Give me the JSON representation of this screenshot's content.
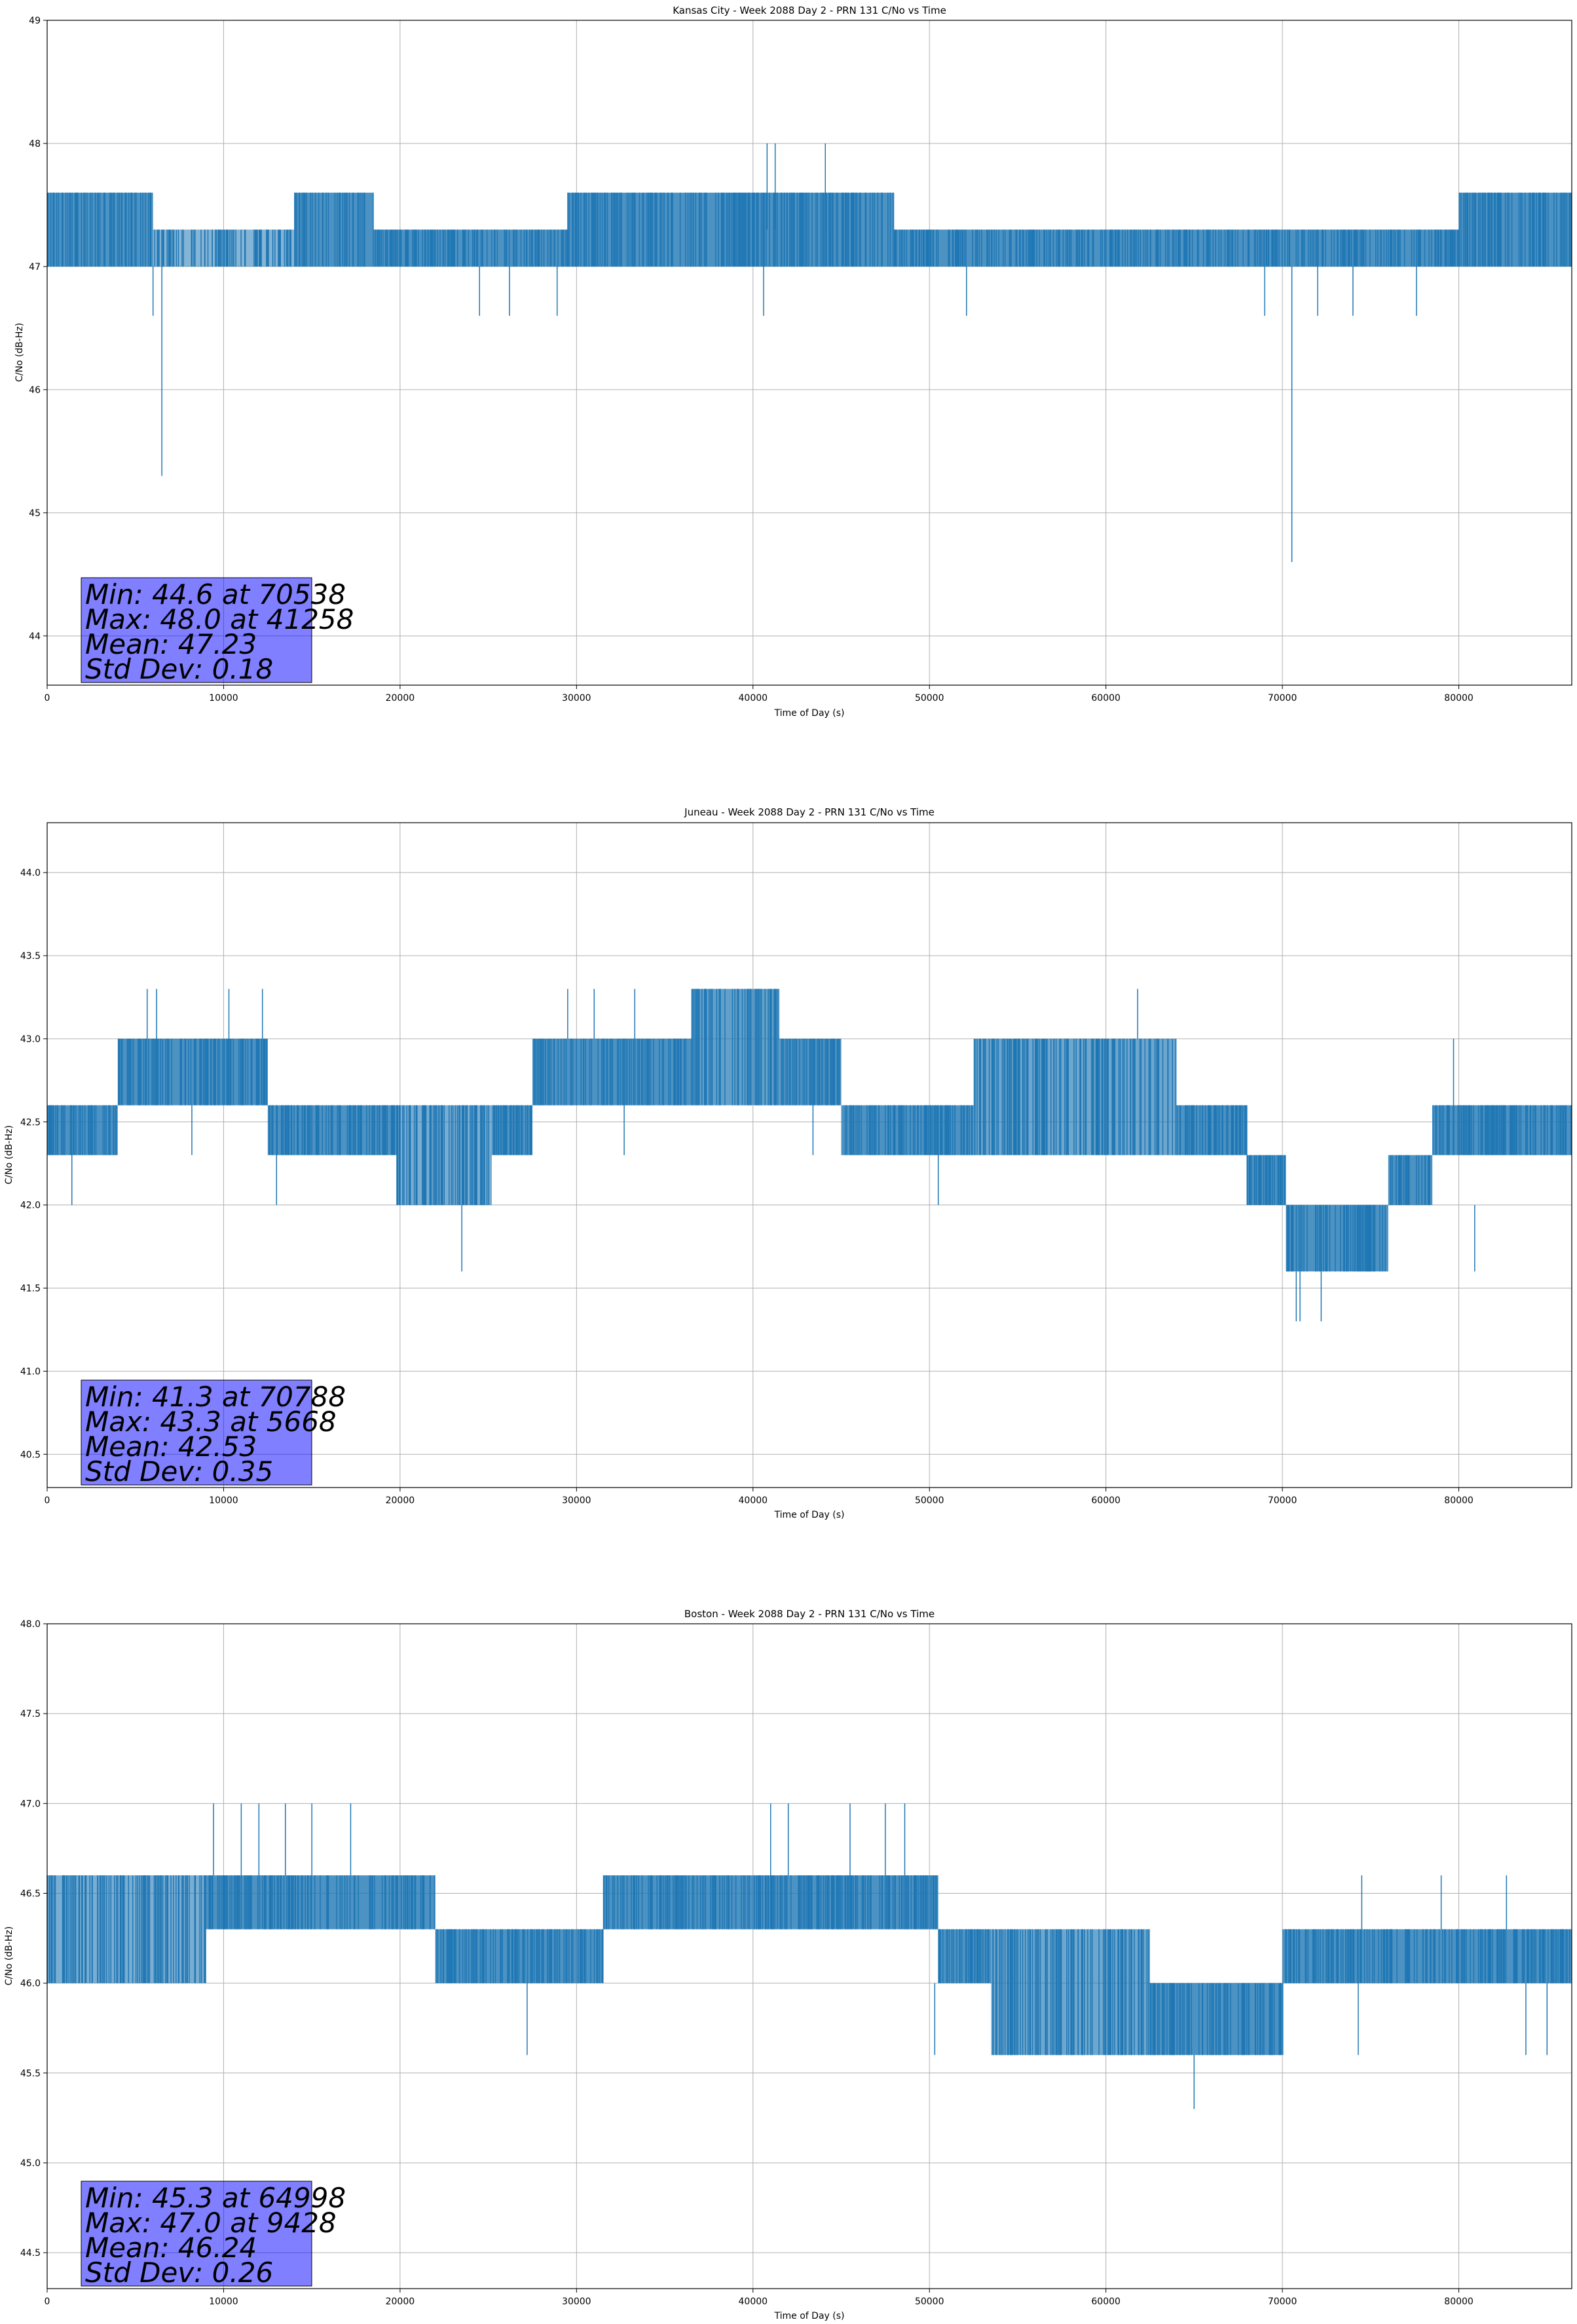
{
  "chart_data": [
    {
      "type": "line",
      "title": "Kansas City - Week 2088 Day 2 - PRN 131 C/No vs Time",
      "xlabel": "Time of Day (s)",
      "ylabel": "C/No (dB-Hz)",
      "xlim": [
        0,
        86400
      ],
      "ylim": [
        43.6,
        49.0
      ],
      "xticks": [
        0,
        10000,
        20000,
        30000,
        40000,
        50000,
        60000,
        70000,
        80000
      ],
      "yticks": [
        44,
        45,
        46,
        47,
        48,
        49
      ],
      "grid": true,
      "color": "#1f77b4",
      "band_step": 500,
      "bands": [
        {
          "x0": 0,
          "x1": 6000,
          "lo": 47.0,
          "hi": 47.6
        },
        {
          "x0": 6000,
          "x1": 14000,
          "lo": 47.0,
          "hi": 47.3,
          "dense": 0.55
        },
        {
          "x0": 14000,
          "x1": 18500,
          "lo": 47.0,
          "hi": 47.6
        },
        {
          "x0": 18500,
          "x1": 29500,
          "lo": 47.0,
          "hi": 47.3
        },
        {
          "x0": 29500,
          "x1": 48000,
          "lo": 47.0,
          "hi": 47.6
        },
        {
          "x0": 48000,
          "x1": 80000,
          "lo": 47.0,
          "hi": 47.3
        },
        {
          "x0": 80000,
          "x1": 86400,
          "lo": 47.0,
          "hi": 47.6
        }
      ],
      "spikes": [
        {
          "x": 6500,
          "lo": 45.3,
          "hi": 47.0
        },
        {
          "x": 70538,
          "lo": 44.6,
          "hi": 47.0
        },
        {
          "x": 41258,
          "lo": 47.3,
          "hi": 48.0
        },
        {
          "x": 40800,
          "lo": 47.3,
          "hi": 48.0
        },
        {
          "x": 44100,
          "lo": 47.3,
          "hi": 48.0
        },
        {
          "x": 6000,
          "lo": 46.6,
          "hi": 47.0
        },
        {
          "x": 24500,
          "lo": 46.6,
          "hi": 47.0
        },
        {
          "x": 26200,
          "lo": 46.6,
          "hi": 47.0
        },
        {
          "x": 28900,
          "lo": 46.6,
          "hi": 47.0
        },
        {
          "x": 40600,
          "lo": 46.6,
          "hi": 47.0
        },
        {
          "x": 52100,
          "lo": 46.6,
          "hi": 47.0
        },
        {
          "x": 69000,
          "lo": 46.6,
          "hi": 47.0
        },
        {
          "x": 72000,
          "lo": 46.6,
          "hi": 47.0
        },
        {
          "x": 74000,
          "lo": 46.6,
          "hi": 47.0
        },
        {
          "x": 77600,
          "lo": 46.6,
          "hi": 47.0
        }
      ],
      "stats": [
        "Min: 44.6 at 70538",
        "Max: 48.0 at 41258",
        "Mean: 47.23",
        "Std Dev: 0.18"
      ]
    },
    {
      "type": "line",
      "title": "Juneau - Week 2088 Day 2 - PRN 131 C/No vs Time",
      "xlabel": "Time of Day (s)",
      "ylabel": "C/No (dB-Hz)",
      "xlim": [
        0,
        86400
      ],
      "ylim": [
        40.3,
        44.3
      ],
      "xticks": [
        0,
        10000,
        20000,
        30000,
        40000,
        50000,
        60000,
        70000,
        80000
      ],
      "yticks": [
        40.5,
        41.0,
        41.5,
        42.0,
        42.5,
        43.0,
        43.5,
        44.0
      ],
      "grid": true,
      "color": "#1f77b4",
      "band_step": 500,
      "bands": [
        {
          "x0": 0,
          "x1": 4000,
          "lo": 42.3,
          "hi": 42.6
        },
        {
          "x0": 4000,
          "x1": 12500,
          "lo": 42.6,
          "hi": 43.0
        },
        {
          "x0": 12500,
          "x1": 19800,
          "lo": 42.3,
          "hi": 42.6
        },
        {
          "x0": 19800,
          "x1": 25200,
          "lo": 42.0,
          "hi": 42.6,
          "dense": 0.6
        },
        {
          "x0": 25200,
          "x1": 27500,
          "lo": 42.3,
          "hi": 42.6
        },
        {
          "x0": 27500,
          "x1": 36500,
          "lo": 42.6,
          "hi": 43.0
        },
        {
          "x0": 36500,
          "x1": 41500,
          "lo": 42.6,
          "hi": 43.3,
          "dense": 0.7
        },
        {
          "x0": 41500,
          "x1": 45000,
          "lo": 42.6,
          "hi": 43.0
        },
        {
          "x0": 45000,
          "x1": 52500,
          "lo": 42.3,
          "hi": 42.6
        },
        {
          "x0": 52500,
          "x1": 64000,
          "lo": 42.3,
          "hi": 43.0,
          "dense": 0.65
        },
        {
          "x0": 64000,
          "x1": 68000,
          "lo": 42.3,
          "hi": 42.6
        },
        {
          "x0": 68000,
          "x1": 70200,
          "lo": 42.0,
          "hi": 42.3
        },
        {
          "x0": 70200,
          "x1": 76000,
          "lo": 41.6,
          "hi": 42.0
        },
        {
          "x0": 76000,
          "x1": 78500,
          "lo": 42.0,
          "hi": 42.3
        },
        {
          "x0": 78500,
          "x1": 86400,
          "lo": 42.3,
          "hi": 42.6
        }
      ],
      "spikes": [
        {
          "x": 70788,
          "lo": 41.3,
          "hi": 41.6
        },
        {
          "x": 71000,
          "lo": 41.3,
          "hi": 41.6
        },
        {
          "x": 72200,
          "lo": 41.3,
          "hi": 41.6
        },
        {
          "x": 5668,
          "lo": 43.0,
          "hi": 43.3
        },
        {
          "x": 6200,
          "lo": 43.0,
          "hi": 43.3
        },
        {
          "x": 10300,
          "lo": 43.0,
          "hi": 43.3
        },
        {
          "x": 12200,
          "lo": 43.0,
          "hi": 43.3
        },
        {
          "x": 29500,
          "lo": 43.0,
          "hi": 43.3
        },
        {
          "x": 31000,
          "lo": 43.0,
          "hi": 43.3
        },
        {
          "x": 33300,
          "lo": 43.0,
          "hi": 43.3
        },
        {
          "x": 61800,
          "lo": 43.0,
          "hi": 43.3
        },
        {
          "x": 23500,
          "lo": 41.6,
          "hi": 42.0
        },
        {
          "x": 1400,
          "lo": 42.0,
          "hi": 42.3
        },
        {
          "x": 8200,
          "lo": 42.3,
          "hi": 42.6
        },
        {
          "x": 13000,
          "lo": 42.0,
          "hi": 42.3
        },
        {
          "x": 32700,
          "lo": 42.3,
          "hi": 42.6
        },
        {
          "x": 43400,
          "lo": 42.3,
          "hi": 42.6
        },
        {
          "x": 50500,
          "lo": 42.0,
          "hi": 42.3
        },
        {
          "x": 80900,
          "lo": 41.6,
          "hi": 42.0
        },
        {
          "x": 79700,
          "lo": 42.6,
          "hi": 43.0
        }
      ],
      "stats": [
        "Min: 41.3 at 70788",
        "Max: 43.3 at 5668",
        "Mean: 42.53",
        "Std Dev: 0.35"
      ]
    },
    {
      "type": "line",
      "title": "Boston - Week 2088 Day 2 - PRN 131 C/No vs Time",
      "xlabel": "Time of Day (s)",
      "ylabel": "C/No (dB-Hz)",
      "xlim": [
        0,
        86400
      ],
      "ylim": [
        44.3,
        48.0
      ],
      "xticks": [
        0,
        10000,
        20000,
        30000,
        40000,
        50000,
        60000,
        70000,
        80000
      ],
      "yticks": [
        44.5,
        45.0,
        45.5,
        46.0,
        46.5,
        47.0,
        47.5,
        48.0
      ],
      "grid": true,
      "color": "#1f77b4",
      "band_step": 500,
      "bands": [
        {
          "x0": 0,
          "x1": 9000,
          "lo": 46.0,
          "hi": 46.6,
          "dense": 0.6
        },
        {
          "x0": 9000,
          "x1": 22000,
          "lo": 46.3,
          "hi": 46.6
        },
        {
          "x0": 22000,
          "x1": 31500,
          "lo": 46.0,
          "hi": 46.3
        },
        {
          "x0": 31500,
          "x1": 50500,
          "lo": 46.3,
          "hi": 46.6
        },
        {
          "x0": 50500,
          "x1": 53500,
          "lo": 46.0,
          "hi": 46.3
        },
        {
          "x0": 53500,
          "x1": 62500,
          "lo": 45.6,
          "hi": 46.3,
          "dense": 0.65
        },
        {
          "x0": 62500,
          "x1": 70000,
          "lo": 45.6,
          "hi": 46.0
        },
        {
          "x0": 70000,
          "x1": 86400,
          "lo": 46.0,
          "hi": 46.3
        }
      ],
      "spikes": [
        {
          "x": 9428,
          "lo": 46.6,
          "hi": 47.0
        },
        {
          "x": 11000,
          "lo": 46.6,
          "hi": 47.0
        },
        {
          "x": 12000,
          "lo": 46.6,
          "hi": 47.0
        },
        {
          "x": 13500,
          "lo": 46.6,
          "hi": 47.0
        },
        {
          "x": 15000,
          "lo": 46.6,
          "hi": 47.0
        },
        {
          "x": 17200,
          "lo": 46.6,
          "hi": 47.0
        },
        {
          "x": 41000,
          "lo": 46.6,
          "hi": 47.0
        },
        {
          "x": 42000,
          "lo": 46.6,
          "hi": 47.0
        },
        {
          "x": 45500,
          "lo": 46.6,
          "hi": 47.0
        },
        {
          "x": 47500,
          "lo": 46.6,
          "hi": 47.0
        },
        {
          "x": 48600,
          "lo": 46.6,
          "hi": 47.0
        },
        {
          "x": 64998,
          "lo": 45.3,
          "hi": 45.6
        },
        {
          "x": 27200,
          "lo": 45.6,
          "hi": 46.0
        },
        {
          "x": 50300,
          "lo": 45.6,
          "hi": 46.0
        },
        {
          "x": 74300,
          "lo": 45.6,
          "hi": 46.0
        },
        {
          "x": 83800,
          "lo": 45.6,
          "hi": 46.0
        },
        {
          "x": 85000,
          "lo": 45.6,
          "hi": 46.0
        },
        {
          "x": 74500,
          "lo": 46.3,
          "hi": 46.6
        },
        {
          "x": 79000,
          "lo": 46.3,
          "hi": 46.6
        },
        {
          "x": 82700,
          "lo": 46.3,
          "hi": 46.6
        }
      ],
      "stats": [
        "Min: 45.3 at 64998",
        "Max: 47.0 at 9428",
        "Mean: 46.24",
        "Std Dev: 0.26"
      ]
    }
  ]
}
